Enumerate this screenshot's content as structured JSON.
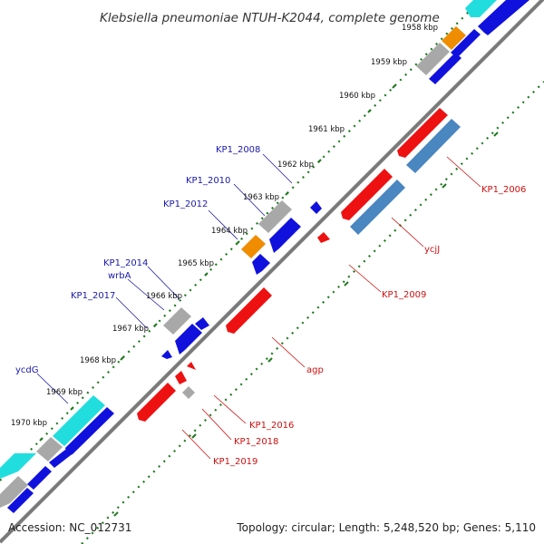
{
  "title": "Klebsiella pneumoniae NTUH-K2044, complete genome",
  "footer": {
    "accession": "Accession: NC_012731",
    "summary": "Topology: circular; Length: 5,248,520 bp; Genes: 5,110"
  },
  "colors": {
    "backbone": "#7a7a7a",
    "tick": "#1e7a1e",
    "forward_cds": "#1111dd",
    "reverse_cds": "#ee1111",
    "rna_or_other": "#a8a8a8",
    "highlight_orange": "#f08c00",
    "highlight_cyan": "#22dddd",
    "steel_blue": "#4a86c0",
    "label_blue": "#1a1aa8",
    "label_red": "#cc1111"
  },
  "scale_labels": [
    "1958 kbp",
    "1959 kbp",
    "1960 kbp",
    "1961 kbp",
    "1962 kbp",
    "1963 kbp",
    "1964 kbp",
    "1965 kbp",
    "1966 kbp",
    "1967 kbp",
    "1968 kbp",
    "1969 kbp",
    "1970 kbp"
  ],
  "upper_strand_labels": [
    "KP1_2008",
    "KP1_2010",
    "KP1_2012",
    "KP1_2014",
    "wrbA",
    "KP1_2017",
    "ycdG"
  ],
  "lower_strand_labels": [
    "KP1_2006",
    "ycjJ",
    "KP1_2009",
    "agp",
    "KP1_2016",
    "KP1_2018",
    "KP1_2019"
  ]
}
